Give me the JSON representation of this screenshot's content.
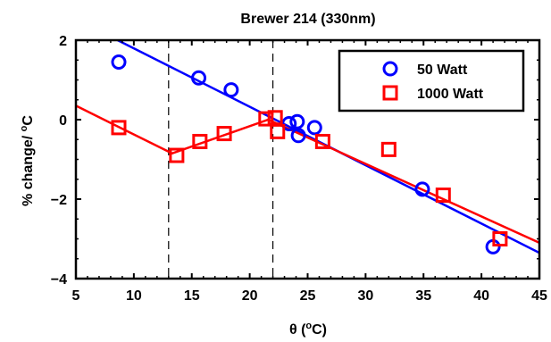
{
  "chart_data": {
    "type": "scatter",
    "title": "Brewer 214 (330nm)",
    "xlabel_prefix": "θ (",
    "xlabel_sup": "o",
    "xlabel_suffix": "C)",
    "ylabel_prefix": "% change/ ",
    "ylabel_sup": "o",
    "ylabel_suffix": "C",
    "xlim": [
      5,
      45
    ],
    "ylim": [
      -4,
      2
    ],
    "xticks": [
      5,
      10,
      15,
      20,
      25,
      30,
      35,
      40,
      45
    ],
    "yticks": [
      -4,
      -2,
      0,
      2
    ],
    "xtick_labels": [
      "5",
      "10",
      "15",
      "20",
      "25",
      "30",
      "35",
      "40",
      "45"
    ],
    "ytick_labels": [
      "−4",
      "−2",
      "0",
      "2"
    ],
    "grid": false,
    "legend_position": "top-right",
    "reference_lines_x": [
      13,
      22
    ],
    "series": [
      {
        "name": "50 Watt",
        "marker": "circle",
        "color": "#0000ff",
        "points": [
          {
            "x": 8.7,
            "y": 1.45
          },
          {
            "x": 15.6,
            "y": 1.05
          },
          {
            "x": 18.4,
            "y": 0.75
          },
          {
            "x": 23.4,
            "y": -0.1
          },
          {
            "x": 24.1,
            "y": -0.05
          },
          {
            "x": 24.2,
            "y": -0.4
          },
          {
            "x": 25.6,
            "y": -0.2
          },
          {
            "x": 34.9,
            "y": -1.75
          },
          {
            "x": 41.0,
            "y": -3.2
          }
        ],
        "fit_line": [
          {
            "x": 8.6,
            "y": 2.0
          },
          {
            "x": 45,
            "y": -3.35
          }
        ]
      },
      {
        "name": "1000 Watt",
        "marker": "square",
        "color": "#ff0000",
        "points": [
          {
            "x": 8.7,
            "y": -0.2
          },
          {
            "x": 13.7,
            "y": -0.9
          },
          {
            "x": 15.7,
            "y": -0.55
          },
          {
            "x": 17.8,
            "y": -0.35
          },
          {
            "x": 21.4,
            "y": 0.02
          },
          {
            "x": 22.2,
            "y": 0.05
          },
          {
            "x": 22.4,
            "y": -0.3
          },
          {
            "x": 26.3,
            "y": -0.55
          },
          {
            "x": 32.0,
            "y": -0.75
          },
          {
            "x": 36.7,
            "y": -1.9
          },
          {
            "x": 41.6,
            "y": -3.0
          }
        ],
        "fit_line": [
          {
            "x": 5,
            "y": 0.35
          },
          {
            "x": 13.3,
            "y": -0.85
          },
          {
            "x": 21.6,
            "y": 0.0
          },
          {
            "x": 45,
            "y": -3.1
          }
        ]
      }
    ]
  }
}
